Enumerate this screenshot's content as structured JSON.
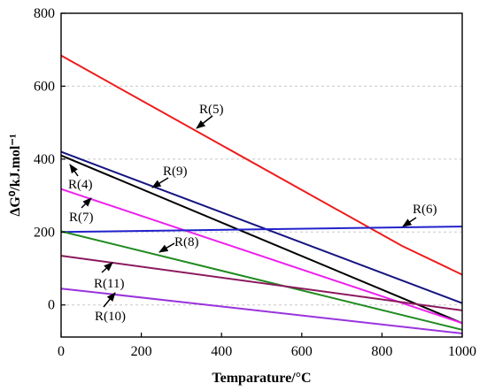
{
  "chart_data": {
    "type": "line",
    "title": "",
    "xlabel": "Temparature/°C",
    "ylabel": "ΔG⁰/kJ.mol⁻¹",
    "xlim": [
      0,
      1000
    ],
    "ylim": [
      -88,
      800
    ],
    "xticks": [
      0,
      200,
      400,
      600,
      800,
      1000
    ],
    "yticks": [
      0,
      200,
      400,
      600,
      800
    ],
    "grid": "horizontal dashed at y ticks",
    "legend": "inline labels with arrows",
    "series": [
      {
        "name": "R(5)",
        "color": "#ee1c1c",
        "x": [
          0,
          850,
          1000
        ],
        "y": [
          684,
          162,
          83
        ]
      },
      {
        "name": "R(9)",
        "color": "#141480",
        "x": [
          0,
          1000
        ],
        "y": [
          420,
          5
        ]
      },
      {
        "name": "R(4)",
        "color": "#000000",
        "x": [
          0,
          1000
        ],
        "y": [
          410,
          -50
        ]
      },
      {
        "name": "R(7)",
        "color": "#ee22ee",
        "x": [
          0,
          1000
        ],
        "y": [
          318,
          -50
        ]
      },
      {
        "name": "R(6)",
        "color": "#2222cc",
        "x": [
          0,
          1000
        ],
        "y": [
          200,
          215
        ]
      },
      {
        "name": "R(8)",
        "color": "#1f8a1f",
        "x": [
          0,
          1000
        ],
        "y": [
          202,
          -68
        ]
      },
      {
        "name": "R(11)",
        "color": "#8b1a5e",
        "x": [
          0,
          1000
        ],
        "y": [
          135,
          -15
        ]
      },
      {
        "name": "R(10)",
        "color": "#9933dd",
        "x": [
          0,
          1000
        ],
        "y": [
          45,
          -78
        ]
      }
    ]
  }
}
